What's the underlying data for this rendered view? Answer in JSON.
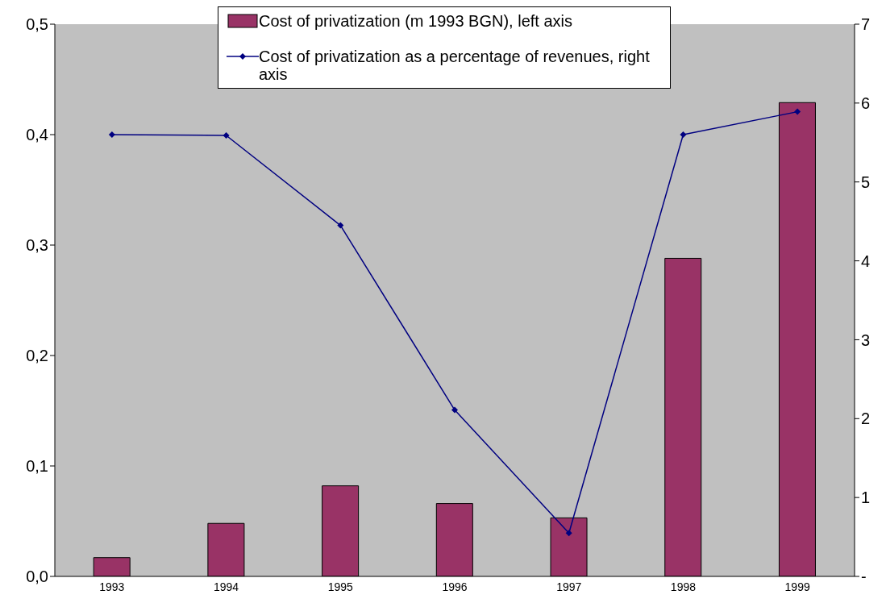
{
  "chart_data": {
    "type": "bar",
    "categories": [
      "1993",
      "1994",
      "1995",
      "1996",
      "1997",
      "1998",
      "1999"
    ],
    "series": [
      {
        "name": "Cost of privatization (m 1993 BGN), left axis",
        "color": "#993366",
        "values": [
          0.017,
          0.048,
          0.082,
          0.066,
          0.053,
          0.288,
          0.429
        ]
      },
      {
        "name": "Cost of privatization as a percentage of revenues, right axis",
        "type": "line",
        "axis": "y2",
        "color": "#000080",
        "values": [
          5.6,
          5.59,
          4.45,
          2.11,
          0.55,
          5.6,
          5.89
        ]
      }
    ],
    "ylim": [
      0,
      0.5
    ],
    "yticks": [
      {
        "value": 0,
        "label": "0,0"
      },
      {
        "value": 0.1,
        "label": "0,1"
      },
      {
        "value": 0.2,
        "label": "0,2"
      },
      {
        "value": 0.3,
        "label": "0,3"
      },
      {
        "value": 0.4,
        "label": "0,4"
      },
      {
        "value": 0.5,
        "label": "0,5"
      }
    ],
    "y2lim": [
      0,
      7
    ],
    "y2ticks": [
      {
        "value": 0,
        "label": "-"
      },
      1,
      2,
      3,
      4,
      5,
      6,
      7
    ],
    "grid": false,
    "legend": "top",
    "marker": "diamond",
    "line_style": "solid"
  }
}
